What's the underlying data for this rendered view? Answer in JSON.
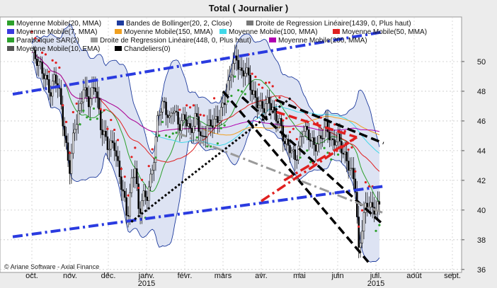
{
  "chart_data": {
    "type": "line",
    "title": "Total  ( Journalier )",
    "credit": "© Ariane Software - Axial Finance",
    "y_ticks": [
      36,
      38,
      40,
      42,
      44,
      46,
      48,
      50
    ],
    "ylim": [
      35.8,
      53
    ],
    "x_ticks": [
      "oct.",
      "nov.",
      "déc.",
      "janv.",
      "févr.",
      "mars",
      "avr.",
      "mai",
      "juin",
      "juil.",
      "août",
      "sept."
    ],
    "x_years": [
      {
        "label": "2015",
        "under": "janv."
      },
      {
        "label": "2015",
        "under": "juil."
      }
    ],
    "legend": [
      {
        "label": "Moyenne Mobile(20, MMA)",
        "color": "#2ca02c"
      },
      {
        "label": "Bandes de Bollinger(20, 2, Close)",
        "color": "#1f3c9e"
      },
      {
        "label": "Droite de Regression Linéaire(1439, 0, Plus haut)",
        "color": "#777777"
      },
      {
        "label": "Moyenne Mobile(7, MMA)",
        "color": "#3a3adf"
      },
      {
        "label": "Moyenne Mobile(150, MMA)",
        "color": "#f0a020"
      },
      {
        "label": "Moyenne Mobile(100, MMA)",
        "color": "#40d8e8"
      },
      {
        "label": "Moyenne Mobile(50, MMA)",
        "color": "#e02020"
      },
      {
        "label": "Parabolique SAR(2)",
        "color": "#2ca02c"
      },
      {
        "label": "Droite de Regression Linéaire(448, 0, Plus haut)",
        "color": "#999999"
      },
      {
        "label": "Moyenne Mobile(200, MMA)",
        "color": "#b000b0"
      },
      {
        "label": "Moyenne Mobile(10, EMA)",
        "color": "#555555"
      },
      {
        "label": "Chandeliers(0)",
        "color": "#000000"
      }
    ],
    "price_close": [
      {
        "m": 0.0,
        "v": 50.6
      },
      {
        "m": 0.2,
        "v": 49.8
      },
      {
        "m": 0.4,
        "v": 48.6
      },
      {
        "m": 0.5,
        "v": 47.8
      },
      {
        "m": 0.6,
        "v": 49.2
      },
      {
        "m": 0.75,
        "v": 47.5
      },
      {
        "m": 0.85,
        "v": 45.0
      },
      {
        "m": 1.0,
        "v": 42.6
      },
      {
        "m": 1.1,
        "v": 45.5
      },
      {
        "m": 1.2,
        "v": 46.2
      },
      {
        "m": 1.35,
        "v": 48.2
      },
      {
        "m": 1.5,
        "v": 47.2
      },
      {
        "m": 1.65,
        "v": 48.6
      },
      {
        "m": 1.8,
        "v": 45.6
      },
      {
        "m": 1.9,
        "v": 45.0
      },
      {
        "m": 2.0,
        "v": 44.2
      },
      {
        "m": 2.15,
        "v": 44.5
      },
      {
        "m": 2.3,
        "v": 42.2
      },
      {
        "m": 2.4,
        "v": 41.0
      },
      {
        "m": 2.5,
        "v": 39.4
      },
      {
        "m": 2.6,
        "v": 41.8
      },
      {
        "m": 2.7,
        "v": 43.0
      },
      {
        "m": 2.8,
        "v": 39.6
      },
      {
        "m": 2.9,
        "v": 41.0
      },
      {
        "m": 3.0,
        "v": 40.8
      },
      {
        "m": 3.1,
        "v": 42.0
      },
      {
        "m": 3.2,
        "v": 43.6
      },
      {
        "m": 3.3,
        "v": 46.5
      },
      {
        "m": 3.45,
        "v": 47.2
      },
      {
        "m": 3.6,
        "v": 46.0
      },
      {
        "m": 3.7,
        "v": 47.0
      },
      {
        "m": 3.85,
        "v": 45.6
      },
      {
        "m": 4.0,
        "v": 46.3
      },
      {
        "m": 4.15,
        "v": 45.2
      },
      {
        "m": 4.3,
        "v": 46.4
      },
      {
        "m": 4.45,
        "v": 44.6
      },
      {
        "m": 4.6,
        "v": 45.7
      },
      {
        "m": 4.75,
        "v": 45.9
      },
      {
        "m": 4.9,
        "v": 46.2
      },
      {
        "m": 5.05,
        "v": 47.5
      },
      {
        "m": 5.15,
        "v": 48.6
      },
      {
        "m": 5.25,
        "v": 49.8
      },
      {
        "m": 5.35,
        "v": 50.2
      },
      {
        "m": 5.5,
        "v": 49.0
      },
      {
        "m": 5.6,
        "v": 49.6
      },
      {
        "m": 5.75,
        "v": 48.0
      },
      {
        "m": 5.9,
        "v": 47.2
      },
      {
        "m": 6.05,
        "v": 46.8
      },
      {
        "m": 6.2,
        "v": 47.4
      },
      {
        "m": 6.35,
        "v": 46.4
      },
      {
        "m": 6.5,
        "v": 45.8
      },
      {
        "m": 6.6,
        "v": 44.6
      },
      {
        "m": 6.75,
        "v": 44.2
      },
      {
        "m": 6.9,
        "v": 43.4
      },
      {
        "m": 7.0,
        "v": 44.4
      },
      {
        "m": 7.1,
        "v": 45.6
      },
      {
        "m": 7.25,
        "v": 45.0
      },
      {
        "m": 7.4,
        "v": 44.2
      },
      {
        "m": 7.55,
        "v": 44.8
      },
      {
        "m": 7.7,
        "v": 45.8
      },
      {
        "m": 7.85,
        "v": 44.4
      },
      {
        "m": 8.0,
        "v": 44.9
      },
      {
        "m": 8.15,
        "v": 43.8
      },
      {
        "m": 8.3,
        "v": 42.9
      },
      {
        "m": 8.45,
        "v": 42.0
      },
      {
        "m": 8.55,
        "v": 37.2
      },
      {
        "m": 8.65,
        "v": 39.0
      },
      {
        "m": 8.75,
        "v": 40.6
      },
      {
        "m": 8.85,
        "v": 40.2
      },
      {
        "m": 9.0,
        "v": 40.0
      },
      {
        "m": 9.1,
        "v": 40.5
      }
    ],
    "trend_lines": [
      {
        "name": "support-long",
        "color": "#2a3be0",
        "style": "dash-dot",
        "p1": {
          "m": -0.5,
          "v": 38.2
        },
        "p2": {
          "m": 9.2,
          "v": 41.6
        }
      },
      {
        "name": "resistance-long",
        "color": "#2a3be0",
        "style": "dash-dot",
        "p1": {
          "m": -0.5,
          "v": 47.8
        },
        "p2": {
          "m": 9.2,
          "v": 52.0
        }
      },
      {
        "name": "channel-upper",
        "color": "#000000",
        "style": "dash",
        "p1": {
          "m": 6.4,
          "v": 47.4
        },
        "p2": {
          "m": 9.2,
          "v": 44.5
        }
      },
      {
        "name": "channel-lower",
        "color": "#000000",
        "style": "dash",
        "p1": {
          "m": 5.5,
          "v": 47.6
        },
        "p2": {
          "m": 9.2,
          "v": 39.0
        }
      },
      {
        "name": "channel-steep",
        "color": "#000000",
        "style": "dash",
        "p1": {
          "m": 5.0,
          "v": 48.0
        },
        "p2": {
          "m": 8.8,
          "v": 36.5
        }
      },
      {
        "name": "rising-dotted",
        "color": "#000000",
        "style": "dotted",
        "p1": {
          "m": 2.6,
          "v": 39.2
        },
        "p2": {
          "m": 6.8,
          "v": 47.6
        }
      },
      {
        "name": "grey-regression",
        "color": "#9a9a9a",
        "style": "dash-dot",
        "p1": {
          "m": 3.8,
          "v": 45.2
        },
        "p2": {
          "m": 9.2,
          "v": 39.8
        }
      },
      {
        "name": "red-upper",
        "color": "#e02020",
        "style": "dash",
        "p1": {
          "m": 6.4,
          "v": 46.6
        },
        "p2": {
          "m": 8.5,
          "v": 44.9
        }
      },
      {
        "name": "red-lower",
        "color": "#e02020",
        "style": "dash-dot",
        "p1": {
          "m": 6.0,
          "v": 40.6
        },
        "p2": {
          "m": 8.5,
          "v": 44.9
        }
      },
      {
        "name": "red-mid",
        "color": "#e02020",
        "style": "dash-dot",
        "p1": {
          "m": 6.6,
          "v": 42.0
        },
        "p2": {
          "m": 8.5,
          "v": 44.9
        }
      }
    ]
  }
}
